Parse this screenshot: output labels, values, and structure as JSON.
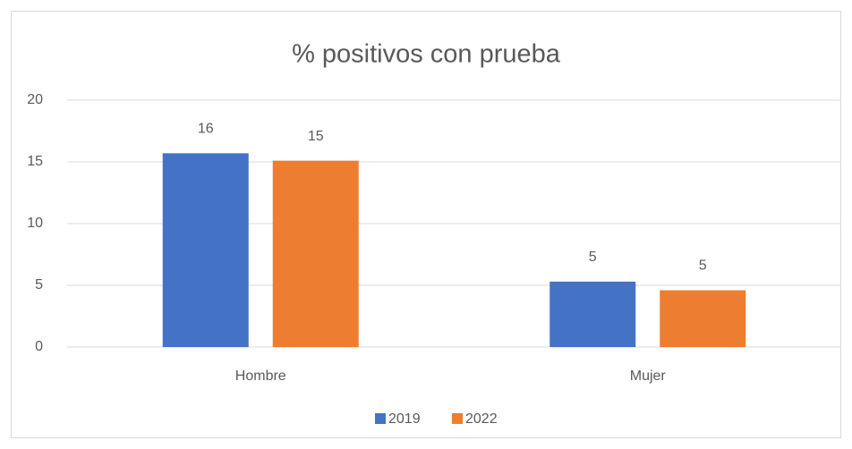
{
  "chart_data": {
    "type": "bar",
    "title": "% positivos con prueba",
    "categories": [
      "Hombre",
      "Mujer"
    ],
    "series": [
      {
        "name": "2019",
        "color": "#4472c4",
        "values": [
          15.7,
          5.3
        ],
        "value_labels": [
          "16",
          "5"
        ]
      },
      {
        "name": "2022",
        "color": "#ed7d31",
        "values": [
          15.1,
          4.6
        ],
        "value_labels": [
          "15",
          "5"
        ]
      }
    ],
    "ylim": [
      0,
      20
    ],
    "yticks": [
      0,
      5,
      10,
      15,
      20
    ],
    "grid": true,
    "legend": "bottom"
  }
}
